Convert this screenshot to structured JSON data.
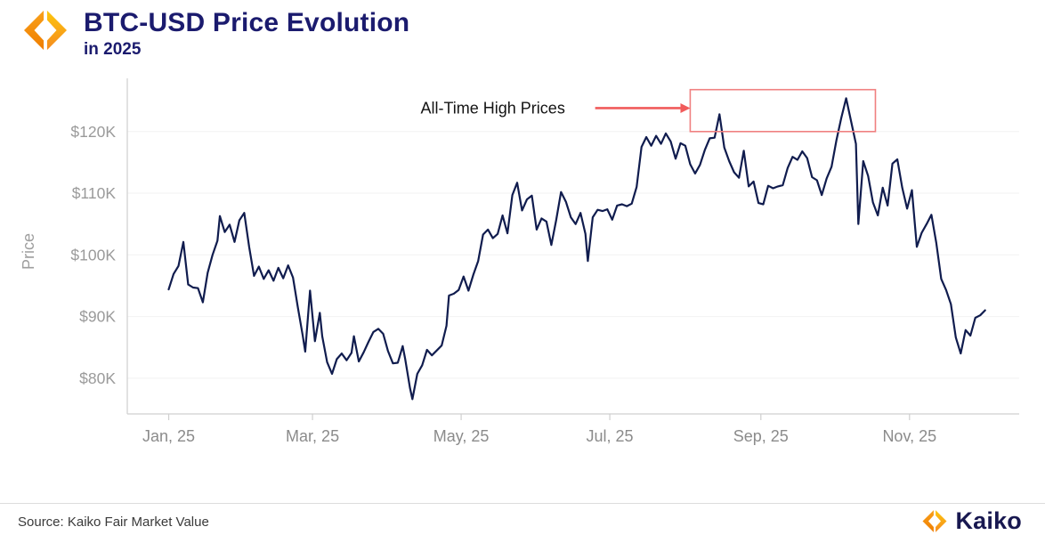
{
  "header": {
    "title": "BTC-USD Price Evolution",
    "subtitle": "in 2025"
  },
  "footer": {
    "source": "Source: Kaiko Fair Market Value",
    "brand": "Kaiko"
  },
  "colors": {
    "line": "#101c4e",
    "title_navy": "#1b1b6e",
    "axis": "#cfcfcf",
    "grid": "#f2f2f2",
    "y_tick_label": "#9a9a9a",
    "x_tick_label": "#8b8b8b",
    "annotation_arrow": "#f15b5b",
    "annotation_box": "#f08080",
    "logo_orange": "#f58a1f",
    "logo_amber": "#fdc00c"
  },
  "chart_data": {
    "type": "line",
    "title": "BTC-USD Price Evolution in 2025",
    "xlabel": "",
    "ylabel": "Price",
    "unit": "USD thousands",
    "grid": "horizontal-faint",
    "legend": "none",
    "xlim_days": [
      -17,
      349
    ],
    "ylim": [
      74.2,
      126.9
    ],
    "y_ticks": [
      {
        "value": 80,
        "label": "$80K"
      },
      {
        "value": 90,
        "label": "$90K"
      },
      {
        "value": 100,
        "label": "$100K"
      },
      {
        "value": 110,
        "label": "$110K"
      },
      {
        "value": 120,
        "label": "$120K"
      }
    ],
    "x_ticks": [
      {
        "day": 0,
        "label": "Jan, 25"
      },
      {
        "day": 59,
        "label": "Mar, 25"
      },
      {
        "day": 120,
        "label": "May, 25"
      },
      {
        "day": 181,
        "label": "Jul, 25"
      },
      {
        "day": 243,
        "label": "Sep, 25"
      },
      {
        "day": 304,
        "label": "Nov, 25"
      }
    ],
    "series": [
      {
        "name": "BTC-USD",
        "color": "#101c4e",
        "points": [
          [
            0,
            94.4
          ],
          [
            2,
            96.9
          ],
          [
            4,
            98.2
          ],
          [
            6,
            102.1
          ],
          [
            8,
            95.2
          ],
          [
            10,
            94.7
          ],
          [
            12,
            94.6
          ],
          [
            14,
            92.3
          ],
          [
            16,
            97.1
          ],
          [
            18,
            100.0
          ],
          [
            20,
            102.3
          ],
          [
            21,
            106.3
          ],
          [
            23,
            103.7
          ],
          [
            25,
            104.9
          ],
          [
            27,
            102.1
          ],
          [
            29,
            105.6
          ],
          [
            31,
            106.8
          ],
          [
            33,
            101.3
          ],
          [
            35,
            96.6
          ],
          [
            37,
            98.1
          ],
          [
            39,
            96.1
          ],
          [
            41,
            97.5
          ],
          [
            43,
            95.8
          ],
          [
            45,
            97.9
          ],
          [
            47,
            96.2
          ],
          [
            49,
            98.3
          ],
          [
            51,
            96.3
          ],
          [
            53,
            91.5
          ],
          [
            55,
            86.9
          ],
          [
            56,
            84.3
          ],
          [
            58,
            94.2
          ],
          [
            60,
            86.0
          ],
          [
            62,
            90.6
          ],
          [
            63,
            86.8
          ],
          [
            65,
            82.6
          ],
          [
            67,
            80.7
          ],
          [
            69,
            83.1
          ],
          [
            71,
            84.0
          ],
          [
            73,
            82.9
          ],
          [
            75,
            84.1
          ],
          [
            76,
            86.8
          ],
          [
            78,
            82.7
          ],
          [
            80,
            84.2
          ],
          [
            82,
            85.9
          ],
          [
            84,
            87.5
          ],
          [
            86,
            88.0
          ],
          [
            88,
            87.2
          ],
          [
            90,
            84.4
          ],
          [
            92,
            82.4
          ],
          [
            94,
            82.5
          ],
          [
            96,
            85.2
          ],
          [
            97,
            83.2
          ],
          [
            99,
            78.4
          ],
          [
            100,
            76.6
          ],
          [
            102,
            80.7
          ],
          [
            104,
            82.1
          ],
          [
            106,
            84.6
          ],
          [
            108,
            83.7
          ],
          [
            110,
            84.5
          ],
          [
            112,
            85.3
          ],
          [
            114,
            88.5
          ],
          [
            115,
            93.4
          ],
          [
            117,
            93.7
          ],
          [
            119,
            94.3
          ],
          [
            121,
            96.5
          ],
          [
            123,
            94.2
          ],
          [
            125,
            96.8
          ],
          [
            127,
            99.0
          ],
          [
            129,
            103.3
          ],
          [
            131,
            104.1
          ],
          [
            133,
            102.7
          ],
          [
            135,
            103.4
          ],
          [
            137,
            106.4
          ],
          [
            139,
            103.5
          ],
          [
            141,
            109.7
          ],
          [
            143,
            111.7
          ],
          [
            145,
            107.2
          ],
          [
            147,
            109.0
          ],
          [
            149,
            109.6
          ],
          [
            151,
            104.1
          ],
          [
            153,
            105.9
          ],
          [
            155,
            105.4
          ],
          [
            157,
            101.6
          ],
          [
            159,
            105.6
          ],
          [
            161,
            110.2
          ],
          [
            163,
            108.6
          ],
          [
            165,
            106.1
          ],
          [
            167,
            105.0
          ],
          [
            169,
            106.8
          ],
          [
            171,
            103.4
          ],
          [
            172,
            99.0
          ],
          [
            174,
            106.1
          ],
          [
            176,
            107.3
          ],
          [
            178,
            107.1
          ],
          [
            180,
            107.4
          ],
          [
            182,
            105.7
          ],
          [
            184,
            108.0
          ],
          [
            186,
            108.2
          ],
          [
            188,
            107.9
          ],
          [
            190,
            108.3
          ],
          [
            192,
            111.0
          ],
          [
            194,
            117.5
          ],
          [
            196,
            119.1
          ],
          [
            198,
            117.7
          ],
          [
            200,
            119.3
          ],
          [
            202,
            118.0
          ],
          [
            204,
            119.7
          ],
          [
            206,
            118.4
          ],
          [
            208,
            115.6
          ],
          [
            210,
            118.1
          ],
          [
            212,
            117.7
          ],
          [
            214,
            114.7
          ],
          [
            216,
            113.2
          ],
          [
            218,
            114.6
          ],
          [
            220,
            117.0
          ],
          [
            222,
            118.9
          ],
          [
            224,
            119.0
          ],
          [
            226,
            122.8
          ],
          [
            228,
            117.4
          ],
          [
            230,
            115.2
          ],
          [
            232,
            113.4
          ],
          [
            234,
            112.5
          ],
          [
            236,
            116.9
          ],
          [
            238,
            111.1
          ],
          [
            240,
            111.9
          ],
          [
            242,
            108.4
          ],
          [
            244,
            108.2
          ],
          [
            246,
            111.2
          ],
          [
            248,
            110.8
          ],
          [
            250,
            111.1
          ],
          [
            252,
            111.3
          ],
          [
            254,
            114.1
          ],
          [
            256,
            115.9
          ],
          [
            258,
            115.4
          ],
          [
            260,
            116.8
          ],
          [
            262,
            115.7
          ],
          [
            264,
            112.6
          ],
          [
            266,
            112.1
          ],
          [
            268,
            109.7
          ],
          [
            270,
            112.4
          ],
          [
            272,
            114.3
          ],
          [
            274,
            118.6
          ],
          [
            276,
            122.2
          ],
          [
            278,
            125.4
          ],
          [
            280,
            121.7
          ],
          [
            282,
            118.0
          ],
          [
            283,
            105.0
          ],
          [
            285,
            115.2
          ],
          [
            287,
            112.8
          ],
          [
            289,
            108.5
          ],
          [
            291,
            106.4
          ],
          [
            293,
            110.9
          ],
          [
            295,
            108.0
          ],
          [
            297,
            114.8
          ],
          [
            299,
            115.5
          ],
          [
            301,
            110.9
          ],
          [
            303,
            107.5
          ],
          [
            305,
            110.5
          ],
          [
            307,
            101.3
          ],
          [
            309,
            103.6
          ],
          [
            311,
            105.0
          ],
          [
            313,
            106.5
          ],
          [
            315,
            101.9
          ],
          [
            317,
            96.1
          ],
          [
            319,
            94.3
          ],
          [
            321,
            92.0
          ],
          [
            323,
            86.6
          ],
          [
            325,
            84.0
          ],
          [
            327,
            87.8
          ],
          [
            329,
            86.9
          ],
          [
            331,
            89.8
          ],
          [
            333,
            90.2
          ],
          [
            335,
            91.0
          ]
        ]
      }
    ],
    "annotation": {
      "label": "All-Time High Prices",
      "label_day": 133,
      "label_price": 123.8,
      "arrow": {
        "from_day": 175,
        "to_day": 210,
        "price": 123.8
      },
      "box": {
        "day_start": 214,
        "day_end": 290,
        "price_low": 120.0,
        "price_high": 126.8
      }
    }
  }
}
